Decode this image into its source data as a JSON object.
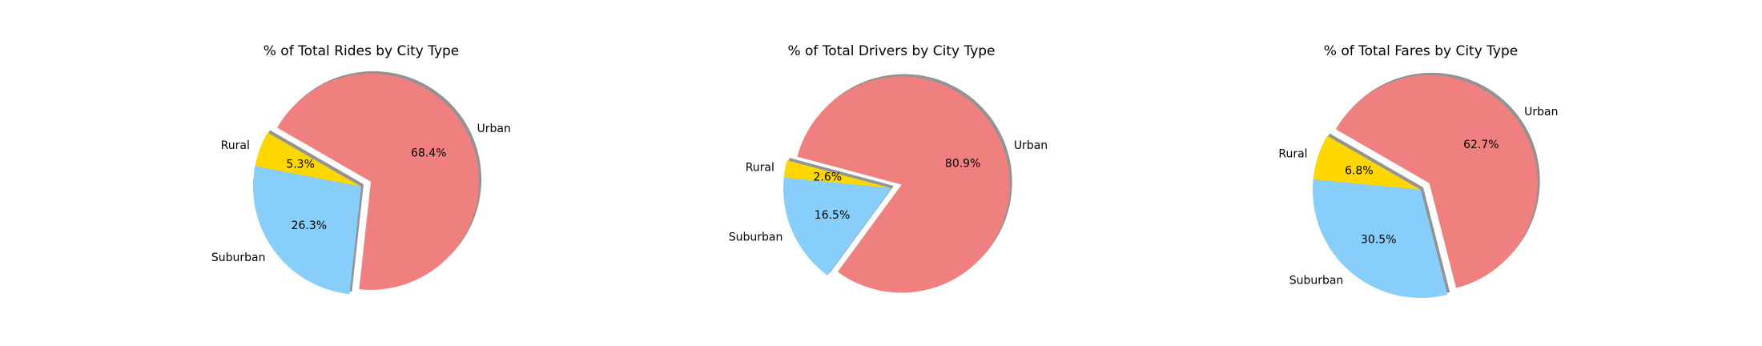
{
  "chart_data": [
    {
      "type": "pie",
      "title": "% of Total Rides by City Type",
      "categories": [
        "Rural",
        "Suburban",
        "Urban"
      ],
      "values": [
        5.3,
        26.3,
        68.4
      ],
      "percent_labels": [
        "5.3%",
        "26.3%",
        "68.4%"
      ],
      "colors": [
        "#FFD700",
        "#87CEFA",
        "#F08080"
      ],
      "explode": [
        0,
        0,
        0.1
      ],
      "start_angle": 150,
      "shadow": true
    },
    {
      "type": "pie",
      "title": "% of Total Drivers by City Type",
      "categories": [
        "Rural",
        "Suburban",
        "Urban"
      ],
      "values": [
        2.6,
        16.5,
        80.9
      ],
      "percent_labels": [
        "2.6%",
        "16.5%",
        "80.9%"
      ],
      "colors": [
        "#FFD700",
        "#87CEFA",
        "#F08080"
      ],
      "explode": [
        0,
        0,
        0.1
      ],
      "start_angle": 165,
      "shadow": true
    },
    {
      "type": "pie",
      "title": "% of Total Fares by City Type",
      "categories": [
        "Rural",
        "Suburban",
        "Urban"
      ],
      "values": [
        6.8,
        30.5,
        62.7
      ],
      "percent_labels": [
        "6.8%",
        "30.5%",
        "62.7%"
      ],
      "colors": [
        "#FFD700",
        "#87CEFA",
        "#F08080"
      ],
      "explode": [
        0,
        0,
        0.1
      ],
      "start_angle": 150,
      "shadow": true
    }
  ]
}
